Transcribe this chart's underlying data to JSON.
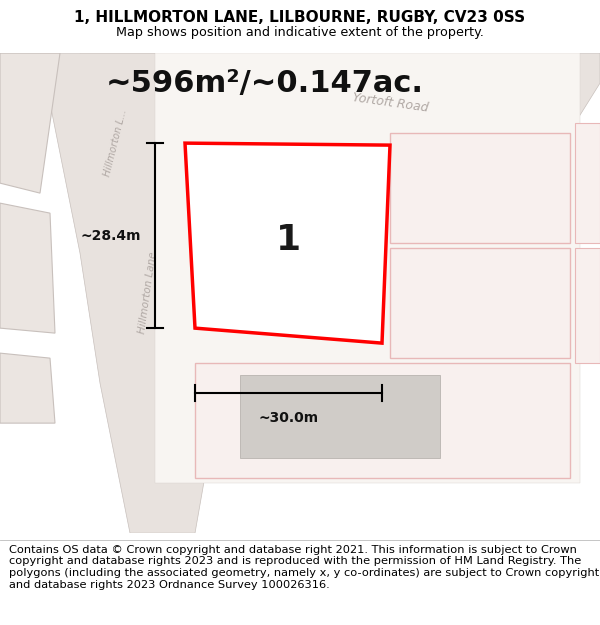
{
  "title_line1": "1, HILLMORTON LANE, LILBOURNE, RUGBY, CV23 0SS",
  "title_line2": "Map shows position and indicative extent of the property.",
  "area_text": "~596m²/~0.147ac.",
  "label_number": "1",
  "dim_width": "~30.0m",
  "dim_height": "~28.4m",
  "footer_text": "Contains OS data © Crown copyright and database right 2021. This information is subject to Crown copyright and database rights 2023 and is reproduced with the permission of HM Land Registry. The polygons (including the associated geometry, namely x, y co-ordinates) are subject to Crown copyright and database rights 2023 Ordnance Survey 100026316.",
  "bg_color": "#f0ebe7",
  "plot_fill": "#ffffff",
  "plot_edge": "#ff0000",
  "building_fill": "#d0ccc8",
  "building_edge": "#b8b4b0",
  "road_fill": "#e8e2de",
  "neighbor_fill": "#f8f0ee",
  "neighbor_edge": "#e8b8b8",
  "left_block_fill": "#ebe5e1",
  "left_block_edge": "#c8c0bc",
  "title_fontsize": 11,
  "footer_fontsize": 8.2,
  "area_fontsize": 22,
  "road_label_color": "#b0a8a4",
  "dim_color": "#111111"
}
